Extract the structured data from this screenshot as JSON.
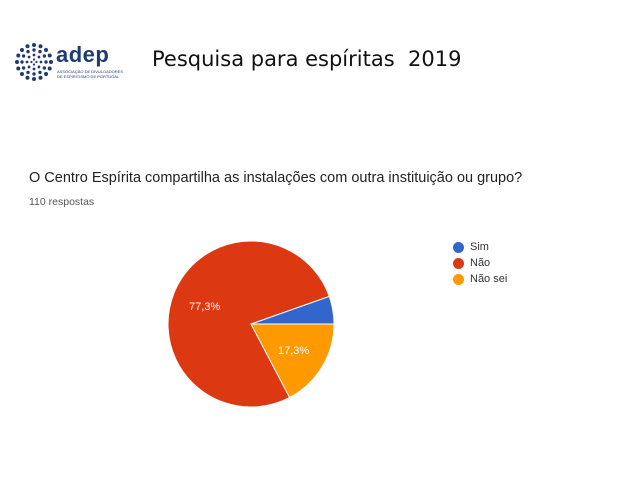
{
  "slide": {
    "title": "Pesquisa para espíritas  2019"
  },
  "logo": {
    "word": "adep",
    "subtitle": "Associação de divulgadores de espiritismo de Portugal"
  },
  "form": {
    "question": "O Centro Espírita compartilha as instalações com outra instituição ou grupo?",
    "responses": "110 respostas"
  },
  "chart_data": {
    "type": "pie",
    "categories": [
      "Sim",
      "Não",
      "Não sei"
    ],
    "values": [
      5.4,
      77.3,
      17.3
    ],
    "data_labels": [
      "",
      "77,3%",
      "17,3%"
    ],
    "colors": [
      "#3366cc",
      "#dc3912",
      "#ff9900"
    ],
    "legend_position": "right",
    "start_angle_deg": 0,
    "direction": "counterclockwise-from-east"
  }
}
